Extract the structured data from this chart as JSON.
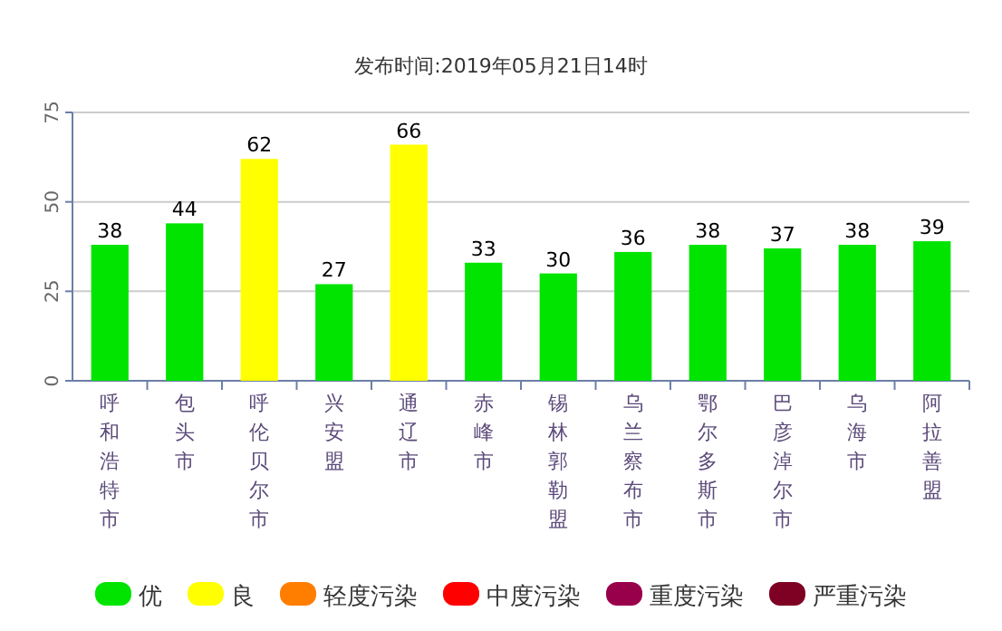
{
  "chart_data": {
    "type": "bar",
    "title": "发布时间:2019年05月21日14时",
    "categories": [
      "呼和浩特市",
      "包头市",
      "呼伦贝尔市",
      "兴安盟",
      "通辽市",
      "赤峰市",
      "锡林郭勒盟",
      "乌兰察布市",
      "鄂尔多斯市",
      "巴彦淖尔市",
      "乌海市",
      "阿拉善盟"
    ],
    "series": [
      {
        "name": "优",
        "color": "#00e400",
        "values": [
          38,
          44,
          null,
          27,
          null,
          33,
          30,
          36,
          38,
          37,
          38,
          39
        ]
      },
      {
        "name": "良",
        "color": "#ffff00",
        "values": [
          null,
          null,
          62,
          null,
          66,
          null,
          null,
          null,
          null,
          null,
          null,
          null
        ]
      },
      {
        "name": "轻度污染",
        "color": "#ff7e00",
        "values": [
          null,
          null,
          null,
          null,
          null,
          null,
          null,
          null,
          null,
          null,
          null,
          null
        ]
      },
      {
        "name": "中度污染",
        "color": "#ff0000",
        "values": [
          null,
          null,
          null,
          null,
          null,
          null,
          null,
          null,
          null,
          null,
          null,
          null
        ]
      },
      {
        "name": "重度污染",
        "color": "#99004c",
        "values": [
          null,
          null,
          null,
          null,
          null,
          null,
          null,
          null,
          null,
          null,
          null,
          null
        ]
      },
      {
        "name": "严重污染",
        "color": "#7e0023",
        "values": [
          null,
          null,
          null,
          null,
          null,
          null,
          null,
          null,
          null,
          null,
          null,
          null
        ]
      }
    ],
    "data_labels": true,
    "ylim": [
      0,
      75
    ],
    "yticks": [
      0,
      25,
      50,
      75
    ],
    "grid": "y",
    "legend": "bottom"
  }
}
